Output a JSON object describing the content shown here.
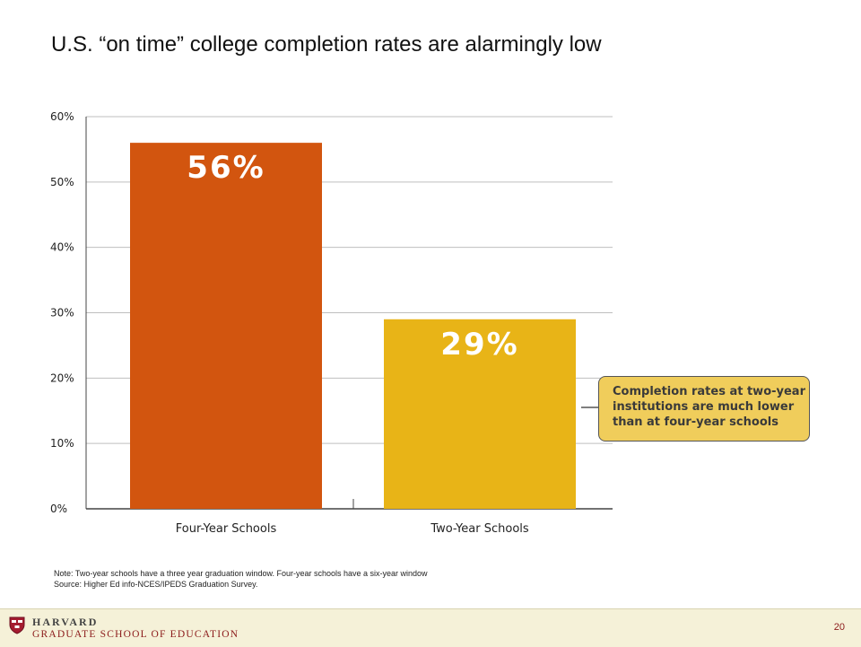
{
  "slide": {
    "title": "U.S. “on time” college completion rates are alarmingly low",
    "note": "Note: Two-year schools have a three year graduation window. Four-year schools have a six-year window",
    "source": "Source: Higher Ed info-NCES/IPEDS Graduation Survey.",
    "callout_lines": [
      "Completion rates at two-year",
      "institutions are much lower",
      "than at four-year schools"
    ]
  },
  "footer": {
    "org_line1": "HARVARD",
    "org_line2": "GRADUATE SCHOOL OF EDUCATION",
    "page_number": "20",
    "logo_icon": "harvard-shield-icon"
  },
  "colors": {
    "four_year_bar": "#d2550f",
    "two_year_bar": "#e8b417",
    "gridline": "#bfbfbf",
    "axis_text": "#222222",
    "bar_label": "#ffffff",
    "callout_fill": "#f0cd5b",
    "crimson": "#8b1a1a"
  },
  "chart_data": {
    "type": "bar",
    "categories": [
      "Four-Year Schools",
      "Two-Year Schools"
    ],
    "values": [
      56,
      29
    ],
    "data_labels": [
      "56%",
      "29%"
    ],
    "yticks": [
      "0%",
      "10%",
      "20%",
      "30%",
      "40%",
      "50%",
      "60%"
    ],
    "ylim": [
      0,
      60
    ],
    "grid": true,
    "xlabel": "",
    "ylabel": ""
  }
}
